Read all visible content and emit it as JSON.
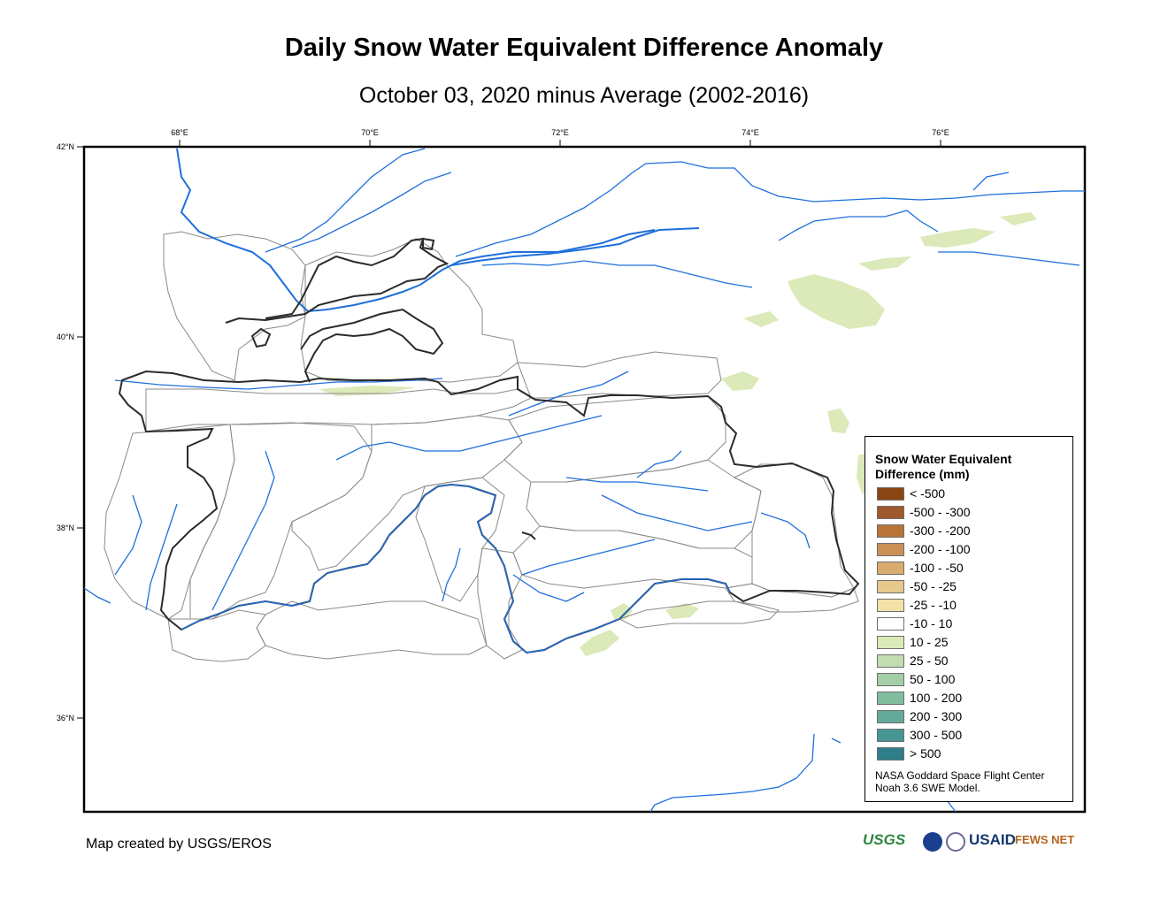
{
  "title": "Daily Snow Water Equivalent Difference Anomaly",
  "subtitle": "October 03, 2020 minus Average (2002-2016)",
  "longitude_labels": [
    "68°E",
    "70°E",
    "72°E",
    "74°E",
    "76°E"
  ],
  "latitude_labels": [
    "42°N",
    "40°N",
    "38°N",
    "36°N"
  ],
  "legend": {
    "title_line1": "Snow Water Equivalent",
    "title_line2": "Difference (mm)",
    "items": [
      {
        "label": "< -500",
        "color": "#8b4513"
      },
      {
        "label": "-500 - -300",
        "color": "#a0592c"
      },
      {
        "label": "-300 - -200",
        "color": "#b87436"
      },
      {
        "label": "-200 - -100",
        "color": "#c99156"
      },
      {
        "label": "-100 - -50",
        "color": "#d8ab6e"
      },
      {
        "label": "-50 - -25",
        "color": "#e6c98c"
      },
      {
        "label": "-25 - -10",
        "color": "#f2e2a8"
      },
      {
        "label": "-10 - 10",
        "color": "#ffffff"
      },
      {
        "label": "10 - 25",
        "color": "#dce9b8"
      },
      {
        "label": "25 - 50",
        "color": "#c2ddb0"
      },
      {
        "label": "50 - 100",
        "color": "#a3cfa7"
      },
      {
        "label": "100 - 200",
        "color": "#82bda0"
      },
      {
        "label": "200 - 300",
        "color": "#63a99a"
      },
      {
        "label": "300 - 500",
        "color": "#479693"
      },
      {
        "label": "> 500",
        "color": "#2e7f89"
      }
    ],
    "credit_line1": "NASA Goddard Space Flight Center",
    "credit_line2": "Noah 3.6 SWE Model."
  },
  "credit": "Map created by USGS/EROS",
  "logos": {
    "usgs": "USGS",
    "usaid": "USAID",
    "fews": "FEWS NET"
  },
  "colors": {
    "river": "#1f6fdc",
    "border": "#2b2b2b",
    "basin": "#808080",
    "positive_anomaly": "#dce9b8"
  }
}
